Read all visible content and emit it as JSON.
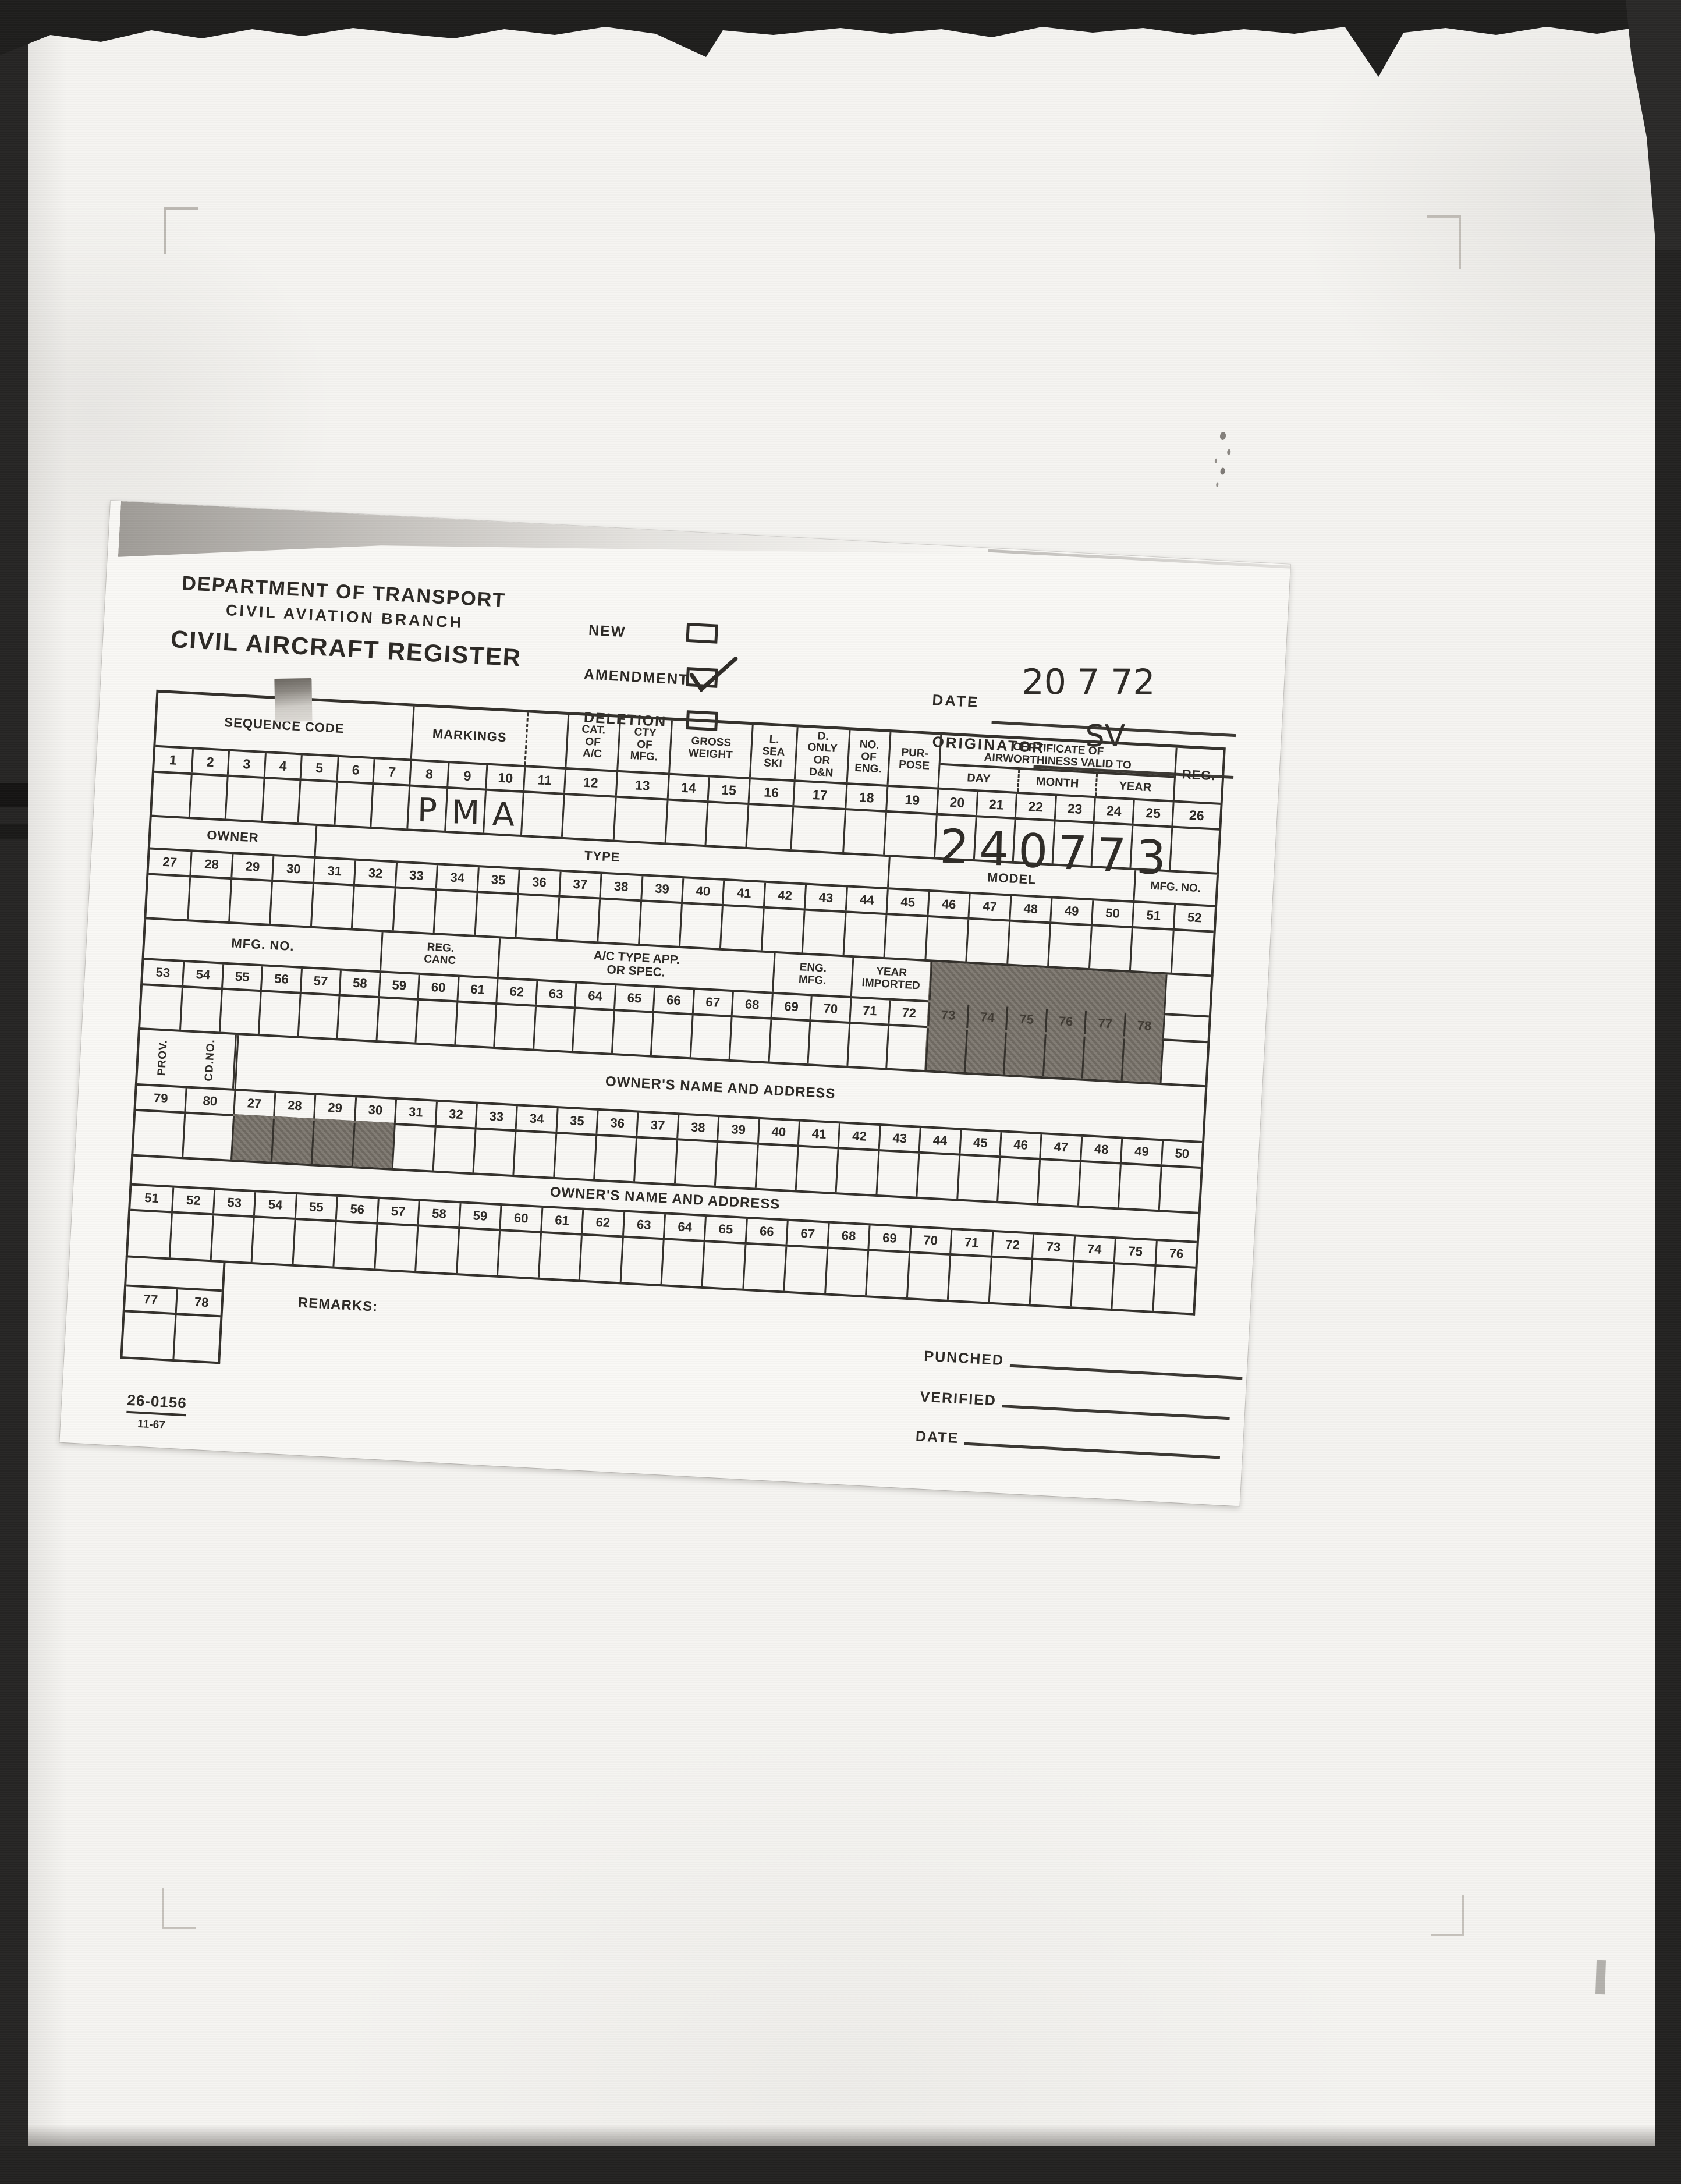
{
  "header": {
    "department": "DEPARTMENT OF TRANSPORT",
    "branch": "CIVIL AVIATION BRANCH",
    "form_title": "CIVIL AIRCRAFT REGISTER",
    "checkboxes": [
      {
        "label": "NEW",
        "checked": false
      },
      {
        "label": "AMENDMENT",
        "checked": true
      },
      {
        "label": "DELETION",
        "checked": false
      }
    ],
    "date_label": "DATE",
    "date_value": "20 7 72",
    "originator_label": "ORIGINATOR",
    "originator_value": "SV"
  },
  "table": {
    "band1": {
      "labels": {
        "sequence_code": "SEQUENCE CODE",
        "markings": "MARKINGS",
        "cat_of_ac": "CAT.\nOF\nA/C",
        "cty_of_mfg": "CTY\nOF\nMFG.",
        "gross_weight": "GROSS\nWEIGHT",
        "l_sea_ski": "L.\nSEA\nSKI",
        "d_only_or_dn": "D.\nONLY\nOR\nD&N",
        "no_of_eng": "NO.\nOF\nENG.",
        "purpose": "PUR-\nPOSE",
        "certificate": "CERTIFICATE OF\nAIRWORTHINESS VALID TO",
        "day": "DAY",
        "month": "MONTH",
        "year": "YEAR",
        "reg": "REG."
      },
      "numbers": [
        "1",
        "2",
        "3",
        "4",
        "5",
        "6",
        "7",
        "8",
        "9",
        "10",
        "11",
        "12",
        "13",
        "14",
        "15",
        "16",
        "17",
        "18",
        "19",
        "20",
        "21",
        "22",
        "23",
        "24",
        "25",
        "26"
      ],
      "entries": {
        "7": "P",
        "8": "M",
        "9": "A",
        "19": "2",
        "20": "4",
        "21": "0",
        "22": "7",
        "23": "7",
        "24": "3"
      }
    },
    "band2": {
      "labels": {
        "owner": "OWNER",
        "type": "TYPE",
        "model": "MODEL",
        "mfg_no": "MFG. NO."
      },
      "numbers": [
        "27",
        "28",
        "29",
        "30",
        "31",
        "32",
        "33",
        "34",
        "35",
        "36",
        "37",
        "38",
        "39",
        "40",
        "41",
        "42",
        "43",
        "44",
        "45",
        "46",
        "47",
        "48",
        "49",
        "50",
        "51",
        "52"
      ]
    },
    "band3": {
      "labels": {
        "mfg_no": "MFG. NO.",
        "reg_canc": "REG.\nCANC",
        "ac_type": "A/C TYPE APP.\nOR SPEC.",
        "eng_mfg": "ENG.\nMFG.",
        "year_imported": "YEAR\nIMPORTED"
      },
      "numbers": [
        "53",
        "54",
        "55",
        "56",
        "57",
        "58",
        "59",
        "60",
        "61",
        "62",
        "63",
        "64",
        "65",
        "66",
        "67",
        "68",
        "69",
        "70",
        "71",
        "72",
        "73",
        "74",
        "75",
        "76",
        "77",
        "78",
        ""
      ]
    },
    "band4": {
      "labels": {
        "prov": "PROV.",
        "cd_no": "CD.NO.",
        "owner_name": "OWNER'S NAME AND ADDRESS"
      },
      "numbers": [
        "79",
        "80",
        "27",
        "28",
        "29",
        "30",
        "31",
        "32",
        "33",
        "34",
        "35",
        "36",
        "37",
        "38",
        "39",
        "40",
        "41",
        "42",
        "43",
        "44",
        "45",
        "46",
        "47",
        "48",
        "49",
        "50"
      ]
    },
    "band5": {
      "labels": {
        "owner_name": "OWNER'S NAME AND ADDRESS"
      },
      "numbers": [
        "51",
        "52",
        "53",
        "54",
        "55",
        "56",
        "57",
        "58",
        "59",
        "60",
        "61",
        "62",
        "63",
        "64",
        "65",
        "66",
        "67",
        "68",
        "69",
        "70",
        "71",
        "72",
        "73",
        "74",
        "75",
        "76"
      ]
    },
    "band6": {
      "labels": {
        "remarks": "REMARKS:"
      },
      "numbers": [
        "77",
        "78"
      ]
    }
  },
  "footer": {
    "form_number": "26-0156",
    "revision": "11-67",
    "punched_label": "PUNCHED",
    "verified_label": "VERIFIED",
    "date_label": "DATE"
  }
}
